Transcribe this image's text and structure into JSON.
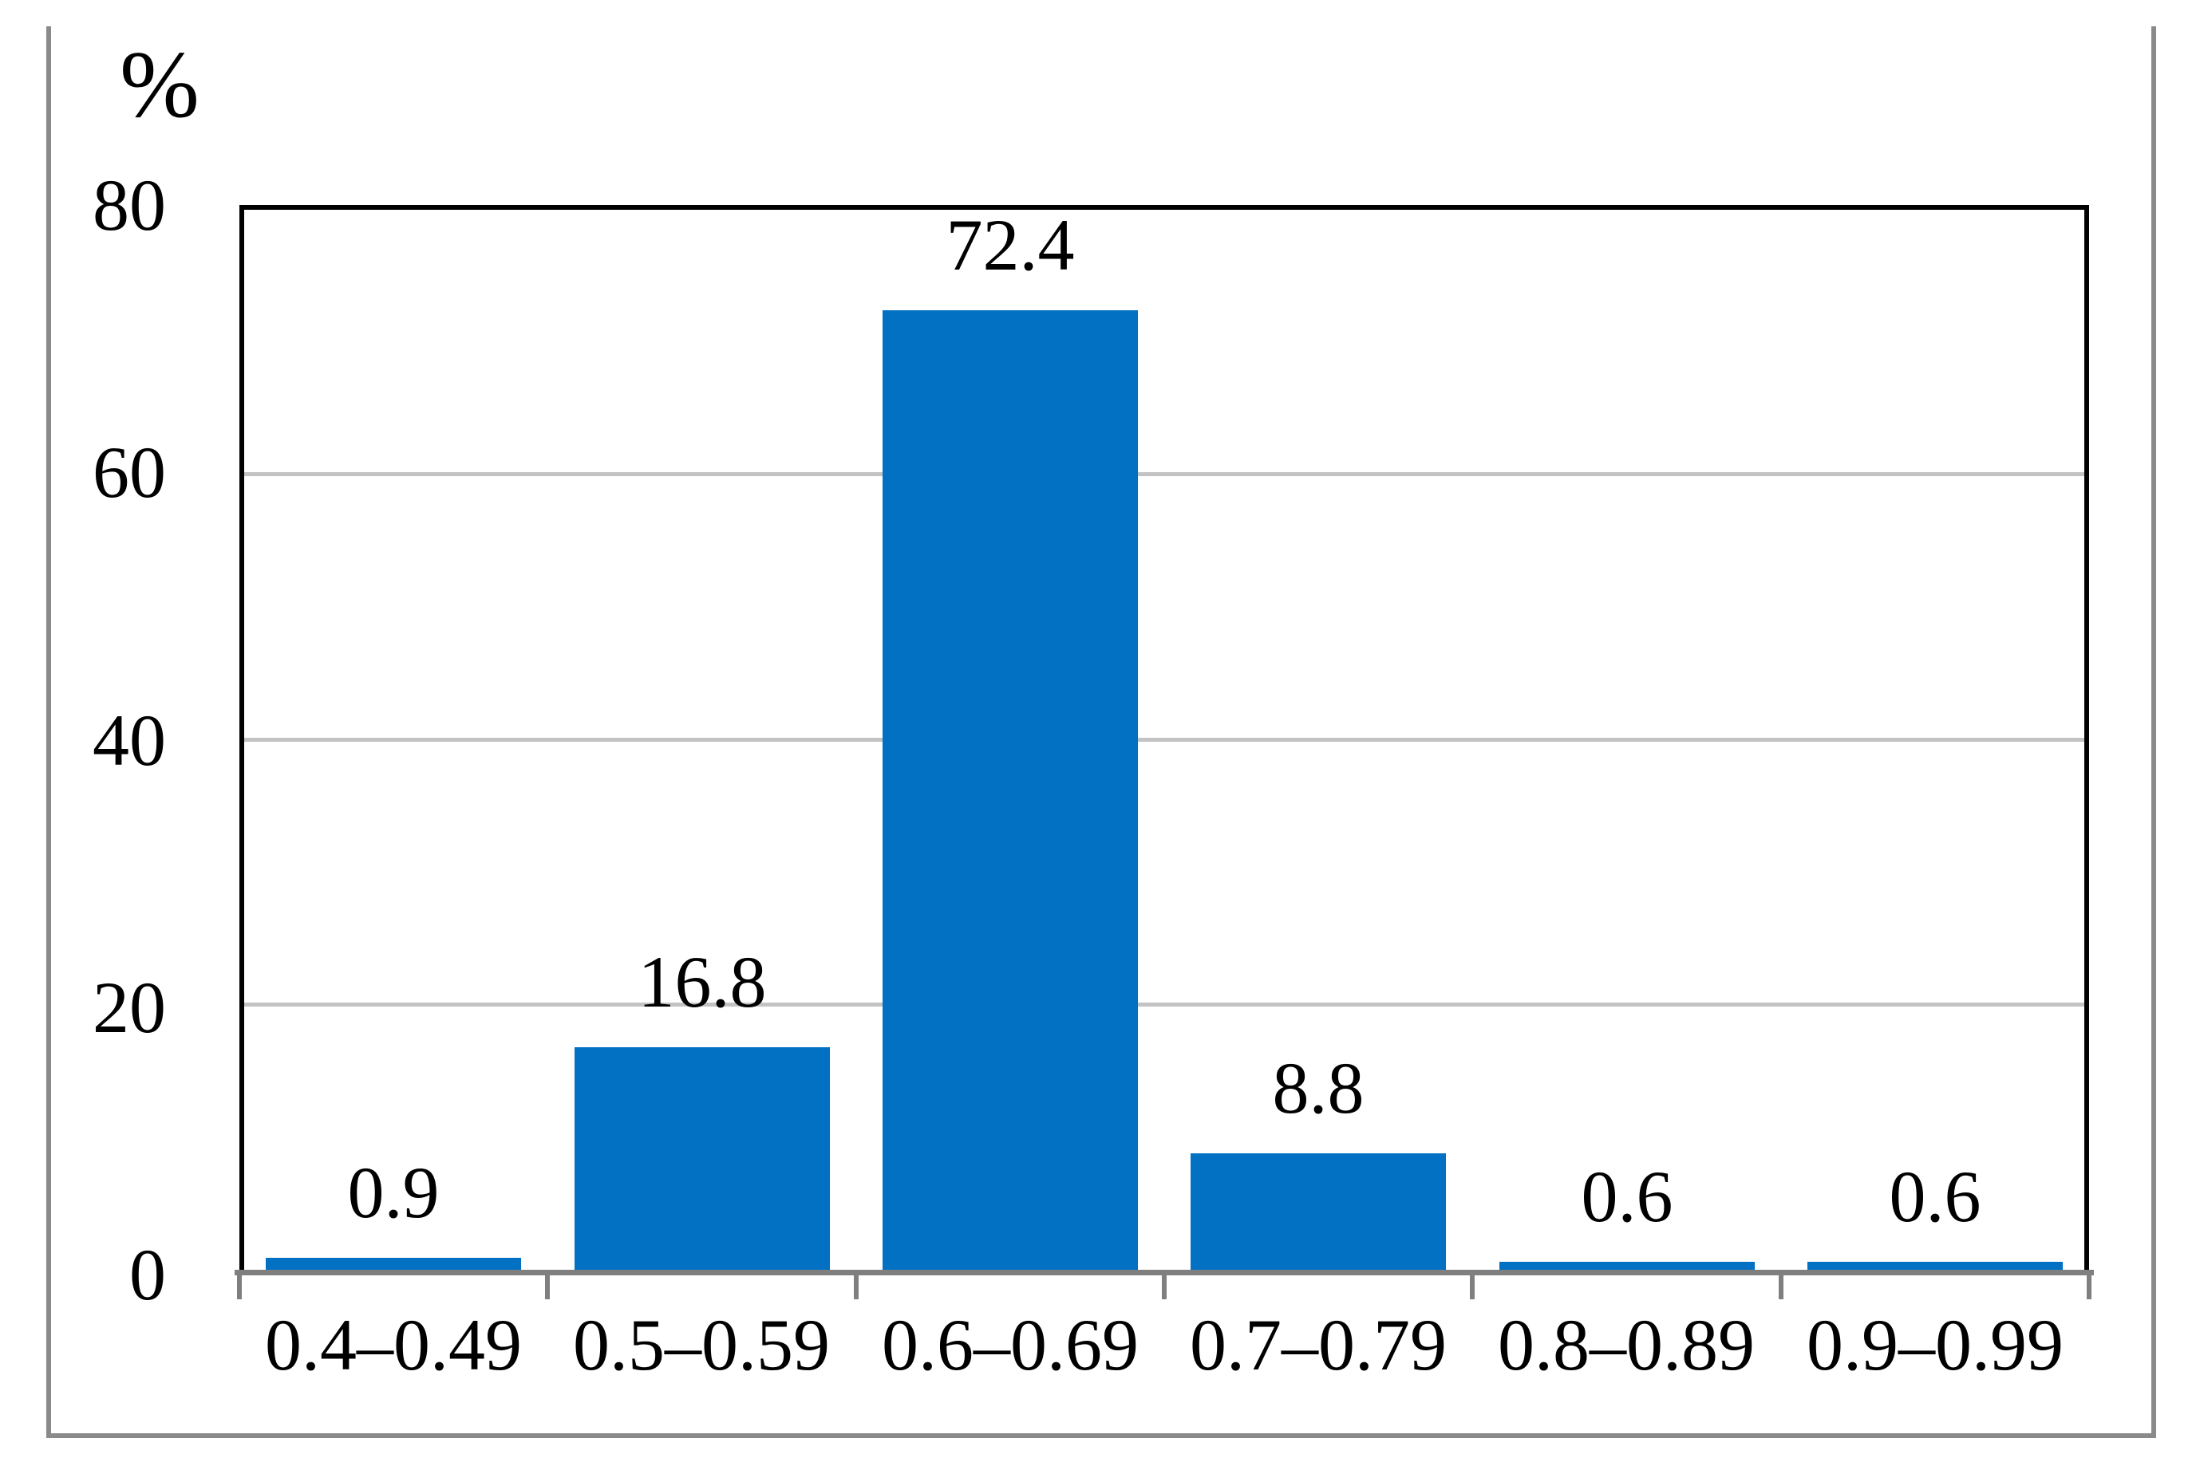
{
  "chart_data": {
    "type": "bar",
    "title": "",
    "ylabel": "%",
    "xlabel": "",
    "categories": [
      "0.4–0.49",
      "0.5–0.59",
      "0.6–0.69",
      "0.7–0.79",
      "0.8–0.89",
      "0.9–0.99"
    ],
    "values": [
      0.9,
      16.8,
      72.4,
      8.8,
      0.6,
      0.6
    ],
    "data_labels": [
      "0.9",
      "16.8",
      "72.4",
      "8.8",
      "0.6",
      "0.6"
    ],
    "ytick_labels": [
      "0",
      "20",
      "40",
      "60",
      "80"
    ],
    "yticks": [
      0,
      20,
      40,
      60,
      80
    ],
    "ylim": [
      0,
      80
    ],
    "grid": "horizontal",
    "gridline_values": [
      20,
      40,
      60
    ],
    "legend": "none",
    "colors": {
      "bar": "#0271c4",
      "gridline": "#c3c3c3",
      "axis": "#7f7f7f",
      "plot_border": "#000000",
      "frame": "#8a8a8a",
      "text": "#000000"
    }
  }
}
